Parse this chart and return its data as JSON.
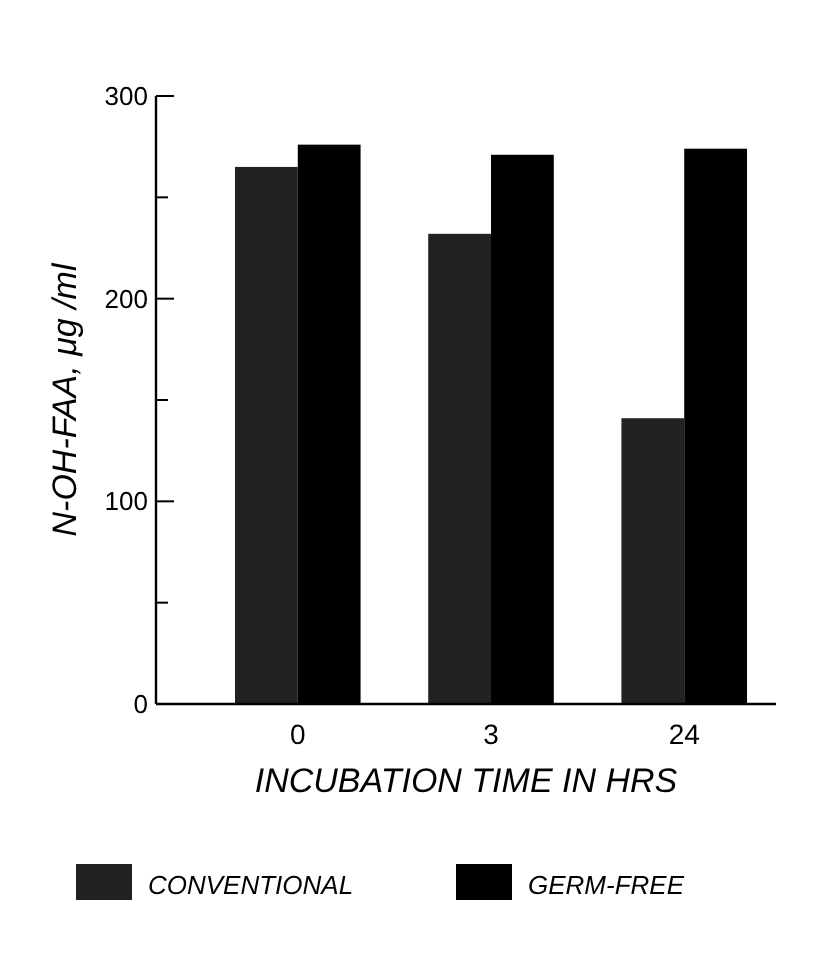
{
  "chart_data": {
    "type": "bar",
    "xlabel": "INCUBATION TIME IN HRS",
    "ylabel": "N-OH-FAA, μg /ml",
    "categories": [
      "0",
      "3",
      "24"
    ],
    "series": [
      {
        "name": "CONVENTIONAL",
        "color": "#222222",
        "values": [
          265,
          232,
          141
        ]
      },
      {
        "name": "GERM-FREE",
        "color": "#000000",
        "values": [
          276,
          271,
          274
        ]
      }
    ],
    "ylim": [
      0,
      300
    ],
    "yticks": [
      0,
      {
        "value": 50,
        "label": null
      },
      100,
      {
        "value": 150,
        "label": null
      },
      200,
      {
        "value": 250,
        "label": null
      },
      300
    ],
    "grid": false,
    "legend": "bottom"
  }
}
